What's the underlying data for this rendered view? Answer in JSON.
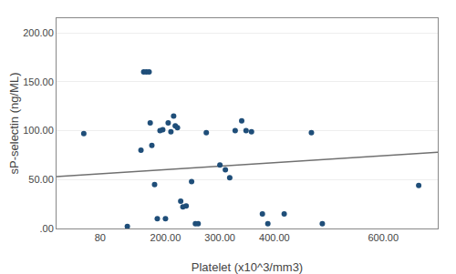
{
  "chart_data": {
    "type": "scatter",
    "xlabel": "Platelet (x10^3/mm3)",
    "ylabel": "sP-selectin (ng/ML)",
    "grid": "y",
    "series": [
      {
        "type": "scatter",
        "marker": "circle",
        "color": "#1F4E79",
        "x": [
          50,
          130,
          155,
          160,
          165,
          170,
          172,
          175,
          180,
          185,
          190,
          195,
          200,
          205,
          210,
          215,
          218,
          222,
          228,
          232,
          238,
          248,
          255,
          260,
          275,
          300,
          310,
          318,
          328,
          340,
          348,
          358,
          378,
          388,
          418,
          468,
          488,
          665
        ],
        "values": [
          97,
          2,
          80,
          160,
          160,
          160,
          108,
          85,
          45,
          10,
          100,
          101,
          10,
          108,
          99,
          115,
          105,
          103,
          28,
          22,
          23,
          48,
          5,
          5,
          98,
          65,
          60,
          52,
          100,
          110,
          100,
          99,
          15,
          5,
          15,
          98,
          5,
          44
        ]
      },
      {
        "type": "line",
        "line_style": "solid",
        "color": "#707070",
        "x": [
          0,
          700
        ],
        "values": [
          53,
          78
        ]
      }
    ],
    "xlim": [
      0,
      700
    ],
    "ylim": [
      0,
      215
    ],
    "xticks": [
      80,
      {
        "value": 200,
        "label": "200.00"
      },
      {
        "value": 300,
        "label": "300.00"
      },
      {
        "value": 400,
        "label": "400.00"
      },
      {
        "value": 600,
        "label": "600.00"
      }
    ],
    "yticks": [
      {
        "value": 0,
        "label": ".00"
      },
      {
        "value": 50,
        "label": "50.00"
      },
      {
        "value": 100,
        "label": "100.00"
      },
      {
        "value": 150,
        "label": "150.00"
      },
      {
        "value": 200,
        "label": "200.00"
      }
    ]
  }
}
